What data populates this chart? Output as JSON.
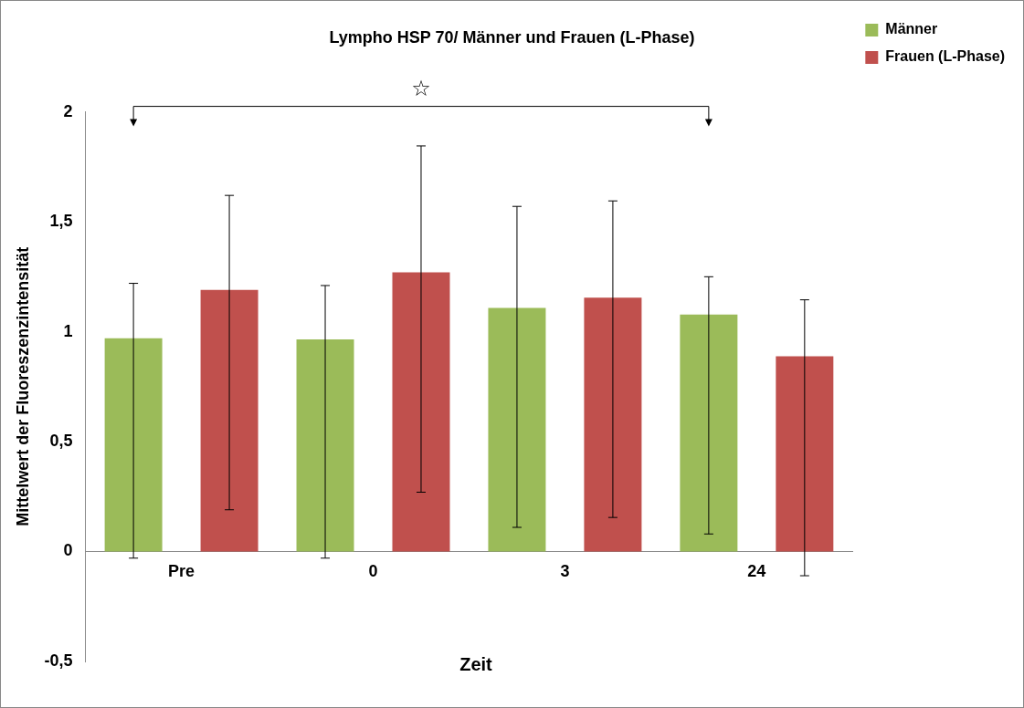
{
  "chart_data": {
    "type": "bar",
    "title": "Lympho HSP 70/ Männer und Frauen (L-Phase)",
    "xlabel": "Zeit",
    "ylabel": "Mittelwert der Fluoreszenzintensität",
    "categories": [
      "Pre",
      "0",
      "3",
      "24"
    ],
    "series": [
      {
        "name": "Männer",
        "color": "#9bbb59",
        "values": [
          0.97,
          0.965,
          1.108,
          1.078
        ],
        "errors": [
          [
            -0.03,
            1.22
          ],
          [
            -0.03,
            1.21
          ],
          [
            0.11,
            1.57
          ],
          [
            0.08,
            1.25
          ]
        ]
      },
      {
        "name": "Frauen (L-Phase)",
        "color": "#c0504d",
        "values": [
          1.19,
          1.27,
          1.155,
          0.888
        ],
        "errors": [
          [
            0.19,
            1.62
          ],
          [
            0.27,
            1.845
          ],
          [
            0.155,
            1.595
          ],
          [
            -0.11,
            1.145
          ]
        ]
      }
    ],
    "ylim": [
      -0.5,
      2
    ],
    "yticks": [
      {
        "value": -0.5,
        "label": "-0,5"
      },
      0,
      {
        "value": 0.5,
        "label": "0,5"
      },
      1,
      {
        "value": 1.5,
        "label": "1,5"
      },
      2
    ],
    "grid": false,
    "legend": "top right",
    "annotations": [
      "☆"
    ]
  }
}
